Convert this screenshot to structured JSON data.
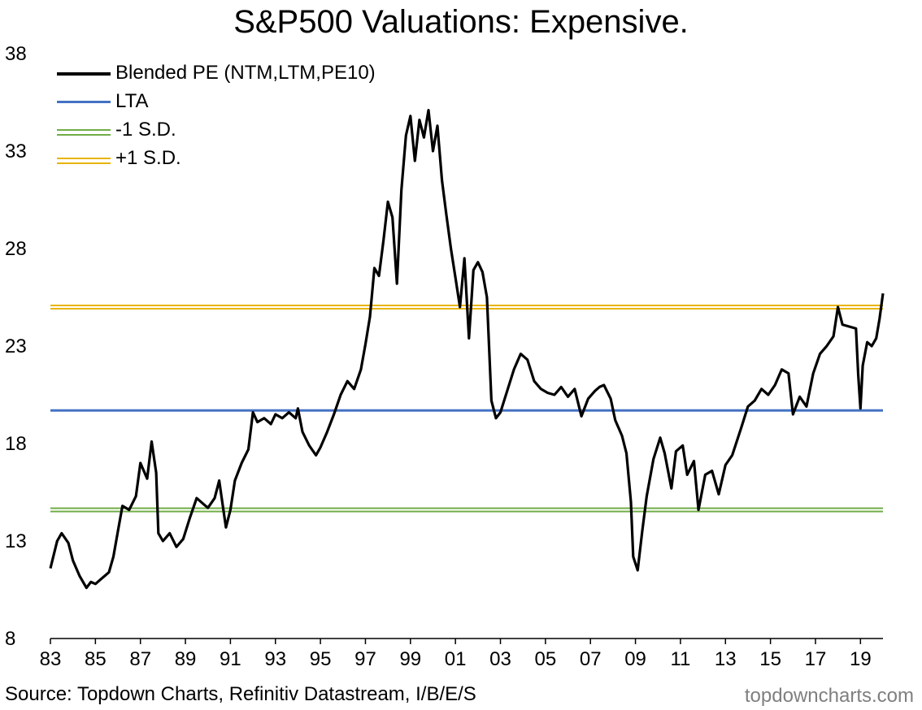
{
  "chart_data": {
    "type": "line",
    "title": "S&P500 Valuations: Expensive.",
    "xlabel": "",
    "ylabel": "",
    "xlim": [
      1983.0,
      2020.0
    ],
    "ylim": [
      8,
      38
    ],
    "y_ticks": [
      8,
      13,
      18,
      23,
      28,
      33,
      38
    ],
    "x_ticks": [
      {
        "value": 1983,
        "label": "83"
      },
      {
        "value": 1985,
        "label": "85"
      },
      {
        "value": 1987,
        "label": "87"
      },
      {
        "value": 1989,
        "label": "89"
      },
      {
        "value": 1991,
        "label": "91"
      },
      {
        "value": 1993,
        "label": "93"
      },
      {
        "value": 1995,
        "label": "95"
      },
      {
        "value": 1997,
        "label": "97"
      },
      {
        "value": 1999,
        "label": "99"
      },
      {
        "value": 2001,
        "label": "01"
      },
      {
        "value": 2003,
        "label": "03"
      },
      {
        "value": 2005,
        "label": "05"
      },
      {
        "value": 2007,
        "label": "07"
      },
      {
        "value": 2009,
        "label": "09"
      },
      {
        "value": 2011,
        "label": "11"
      },
      {
        "value": 2013,
        "label": "13"
      },
      {
        "value": 2015,
        "label": "15"
      },
      {
        "value": 2017,
        "label": "17"
      },
      {
        "value": 2019,
        "label": "19"
      }
    ],
    "grid": false,
    "legend_position": "top-left",
    "series": [
      {
        "name": "Blended PE (NTM,LTM,PE10)",
        "color": "#000000",
        "style": "solid",
        "x": [
          1983.0,
          1983.3,
          1983.5,
          1983.8,
          1984.0,
          1984.3,
          1984.6,
          1984.8,
          1985.0,
          1985.3,
          1985.6,
          1985.8,
          1986.0,
          1986.2,
          1986.5,
          1986.8,
          1987.0,
          1987.3,
          1987.5,
          1987.7,
          1987.8,
          1988.0,
          1988.3,
          1988.6,
          1988.9,
          1989.2,
          1989.5,
          1989.8,
          1990.0,
          1990.3,
          1990.5,
          1990.7,
          1990.8,
          1991.0,
          1991.2,
          1991.5,
          1991.8,
          1992.0,
          1992.2,
          1992.5,
          1992.8,
          1993.0,
          1993.3,
          1993.6,
          1993.9,
          1994.0,
          1994.2,
          1994.5,
          1994.8,
          1995.0,
          1995.3,
          1995.6,
          1995.9,
          1996.2,
          1996.5,
          1996.8,
          1997.0,
          1997.2,
          1997.4,
          1997.6,
          1997.8,
          1998.0,
          1998.2,
          1998.4,
          1998.6,
          1998.8,
          1999.0,
          1999.2,
          1999.4,
          1999.6,
          1999.8,
          2000.0,
          2000.2,
          2000.4,
          2000.6,
          2000.8,
          2001.0,
          2001.2,
          2001.4,
          2001.6,
          2001.8,
          2002.0,
          2002.2,
          2002.4,
          2002.6,
          2002.8,
          2003.0,
          2003.3,
          2003.6,
          2003.9,
          2004.2,
          2004.5,
          2004.8,
          2005.1,
          2005.4,
          2005.7,
          2006.0,
          2006.3,
          2006.6,
          2006.9,
          2007.2,
          2007.4,
          2007.6,
          2007.9,
          2008.1,
          2008.4,
          2008.6,
          2008.8,
          2008.9,
          2009.1,
          2009.3,
          2009.5,
          2009.8,
          2010.1,
          2010.3,
          2010.6,
          2010.8,
          2011.1,
          2011.3,
          2011.6,
          2011.8,
          2012.1,
          2012.4,
          2012.7,
          2013.0,
          2013.3,
          2013.7,
          2014.0,
          2014.3,
          2014.6,
          2014.9,
          2015.2,
          2015.5,
          2015.8,
          2016.0,
          2016.3,
          2016.6,
          2016.9,
          2017.2,
          2017.5,
          2017.8,
          2018.0,
          2018.2,
          2018.5,
          2018.8,
          2018.9,
          2019.0,
          2019.1,
          2019.3,
          2019.5,
          2019.7,
          2019.85,
          2020.0
        ],
        "values": [
          11.6,
          13.0,
          13.4,
          12.9,
          12.0,
          11.2,
          10.6,
          10.9,
          10.8,
          11.1,
          11.4,
          12.2,
          13.5,
          14.8,
          14.6,
          15.3,
          17.0,
          16.2,
          18.1,
          16.5,
          13.4,
          13.0,
          13.4,
          12.7,
          13.1,
          14.2,
          15.2,
          14.9,
          14.7,
          15.2,
          16.1,
          14.5,
          13.7,
          14.6,
          16.1,
          17.0,
          17.7,
          19.6,
          19.1,
          19.3,
          19.0,
          19.5,
          19.3,
          19.6,
          19.3,
          19.8,
          18.6,
          17.9,
          17.4,
          17.8,
          18.6,
          19.5,
          20.5,
          21.2,
          20.8,
          21.8,
          23.1,
          24.5,
          27.0,
          26.6,
          28.4,
          30.4,
          29.6,
          26.2,
          31.0,
          33.8,
          34.8,
          32.5,
          34.6,
          33.7,
          35.1,
          33.0,
          34.3,
          31.5,
          29.7,
          28.0,
          26.5,
          25.0,
          27.5,
          23.4,
          26.9,
          27.3,
          26.8,
          25.5,
          20.2,
          19.3,
          19.6,
          20.7,
          21.8,
          22.6,
          22.3,
          21.2,
          20.8,
          20.6,
          20.5,
          20.9,
          20.4,
          20.8,
          19.4,
          20.3,
          20.7,
          20.9,
          21.0,
          20.3,
          19.2,
          18.4,
          17.5,
          15.0,
          12.2,
          11.5,
          13.5,
          15.3,
          17.2,
          18.3,
          17.5,
          15.7,
          17.6,
          17.9,
          16.4,
          17.1,
          14.6,
          16.4,
          16.6,
          15.4,
          16.9,
          17.4,
          18.8,
          19.9,
          20.2,
          20.8,
          20.5,
          21.0,
          21.8,
          21.6,
          19.5,
          20.4,
          19.9,
          21.6,
          22.6,
          23.0,
          23.5,
          25.0,
          24.1,
          24.0,
          23.9,
          21.5,
          19.8,
          22.0,
          23.2,
          23.0,
          23.4,
          24.4,
          25.7
        ]
      },
      {
        "name": "LTA",
        "color": "#4472C4",
        "style": "solid",
        "y": 19.7
      },
      {
        "name": "-1 S.D.",
        "color": "#70AD47",
        "style": "double",
        "y": 14.6
      },
      {
        "name": "+1 S.D.",
        "color": "#E8B400",
        "style": "double",
        "y": 25.0
      }
    ]
  },
  "source": "Source: Topdown Charts, Refinitiv Datastream, I/B/E/S",
  "watermark": "topdowncharts.com"
}
